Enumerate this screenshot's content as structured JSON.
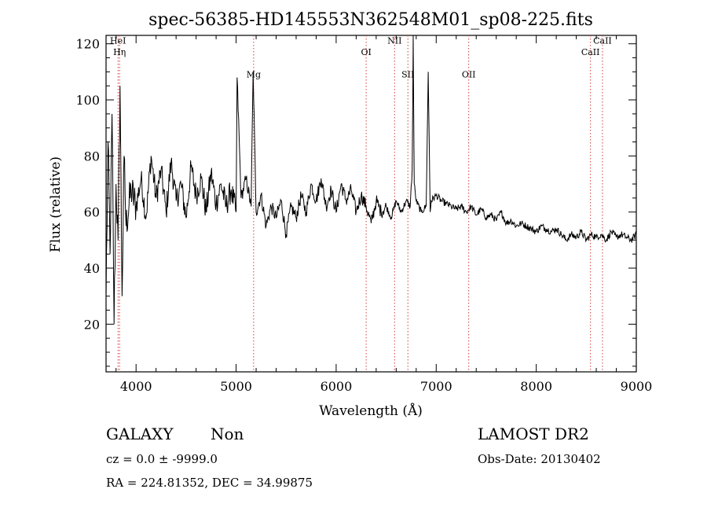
{
  "chart_data": {
    "type": "line",
    "title": "spec-56385-HD145553N362548M01_sp08-225.fits",
    "xlabel": "Wavelength (Å)",
    "ylabel": "Flux (relative)",
    "xlim": [
      3700,
      9000
    ],
    "ylim": [
      3,
      123
    ],
    "xticks": [
      4000,
      5000,
      6000,
      7000,
      8000,
      9000
    ],
    "yticks": [
      20,
      40,
      60,
      80,
      100,
      120
    ],
    "grid": false,
    "spectral_lines": [
      {
        "label": "HeI",
        "x": 3820,
        "y": 120
      },
      {
        "label": "Hη",
        "x": 3835,
        "y": 116
      },
      {
        "label": "Mg",
        "x": 5175,
        "y": 108
      },
      {
        "label": "OI",
        "x": 6300,
        "y": 116
      },
      {
        "label": "NII",
        "x": 6584,
        "y": 120
      },
      {
        "label": "SII",
        "x": 6717,
        "y": 108
      },
      {
        "label": "OII",
        "x": 7325,
        "y": 108
      },
      {
        "label": "CaII",
        "x": 8542,
        "y": 116
      },
      {
        "label": "CaII",
        "x": 8662,
        "y": 120
      }
    ],
    "series": [
      {
        "x": [
          3700,
          3720,
          3740,
          3760,
          3780,
          3800,
          3820,
          3840,
          3860,
          3880,
          3900,
          3950,
          4000,
          4050,
          4100,
          4150,
          4200,
          4250,
          4300,
          4350,
          4400,
          4450,
          4500,
          4550,
          4600,
          4650,
          4700,
          4750,
          4800,
          4850,
          4900,
          4950,
          5000,
          5010,
          5050,
          5100,
          5150,
          5170,
          5200,
          5250,
          5300,
          5350,
          5400,
          5450,
          5500,
          5550,
          5600,
          5650,
          5700,
          5750,
          5800,
          5850,
          5900,
          5950,
          6000,
          6050,
          6100,
          6150,
          6200,
          6250,
          6300,
          6350,
          6400,
          6450,
          6500,
          6550,
          6600,
          6650,
          6700,
          6740,
          6760,
          6770,
          6780,
          6800,
          6850,
          6900,
          6920,
          6940,
          6950,
          7000,
          7050,
          7100,
          7150,
          7200,
          7250,
          7300,
          7350,
          7400,
          7450,
          7500,
          7550,
          7600,
          7650,
          7700,
          7750,
          7800,
          7850,
          7900,
          7950,
          8000,
          8050,
          8100,
          8150,
          8200,
          8250,
          8300,
          8350,
          8400,
          8450,
          8500,
          8550,
          8600,
          8650,
          8700,
          8750,
          8800,
          8850,
          8900,
          8950,
          9000
        ],
        "y": [
          30,
          85,
          45,
          95,
          20,
          70,
          50,
          105,
          30,
          80,
          55,
          68,
          62,
          72,
          58,
          80,
          65,
          75,
          60,
          78,
          64,
          70,
          58,
          76,
          66,
          72,
          60,
          74,
          63,
          70,
          62,
          68,
          60,
          108,
          65,
          72,
          62,
          110,
          60,
          66,
          55,
          62,
          58,
          64,
          52,
          62,
          58,
          66,
          60,
          70,
          64,
          72,
          62,
          68,
          60,
          70,
          64,
          68,
          60,
          66,
          62,
          56,
          64,
          60,
          62,
          58,
          64,
          60,
          64,
          62,
          75,
          123,
          70,
          64,
          60,
          62,
          110,
          60,
          64,
          66,
          64,
          63,
          62,
          61,
          62,
          60,
          62,
          59,
          61,
          58,
          59,
          57,
          60,
          56,
          57,
          55,
          56,
          55,
          54,
          53,
          55,
          54,
          53,
          54,
          52,
          50,
          52,
          51,
          53,
          50,
          52,
          51,
          52,
          50,
          53,
          51,
          52,
          51,
          50,
          52
        ]
      }
    ]
  },
  "info": {
    "class": "GALAXY",
    "subclass": "Non",
    "survey": "LAMOST DR2",
    "cz": "cz = 0.0 ± -9999.0",
    "obs_date": "Obs-Date: 20130402",
    "coords": "RA = 224.81352, DEC =  34.99875"
  }
}
